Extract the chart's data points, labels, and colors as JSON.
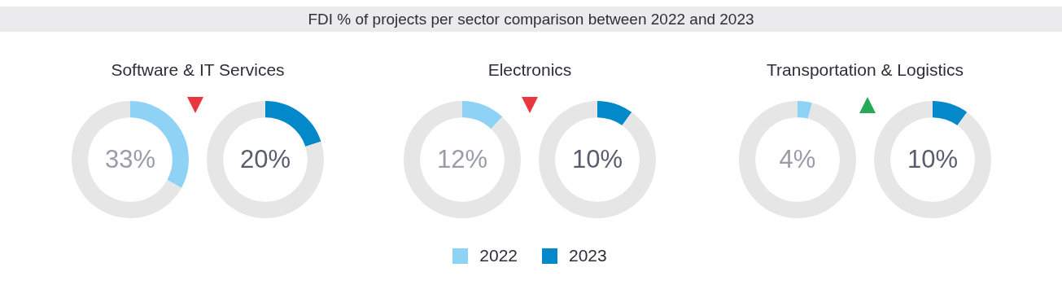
{
  "chart_data": [
    {
      "type": "other",
      "title": "FDI % of projects per sector comparison between 2022 and 2023"
    },
    {
      "type": "donut",
      "subtitle": "Software & IT Services",
      "categories": [
        null,
        null
      ],
      "series": [
        {
          "colors": [
            "#8ed3f5",
            "#e6e6e6"
          ],
          "values": [
            33,
            67
          ],
          "value_labels": [
            "33%",
            null
          ]
        },
        {
          "colors": [
            "#0388c9",
            "#e6e6e6"
          ],
          "values": [
            20,
            80
          ],
          "value_labels": [
            "20%",
            null
          ]
        }
      ]
    },
    {
      "type": "donut",
      "subtitle": "Electronics",
      "categories": [
        null,
        null
      ],
      "legend": "bottom",
      "series": [
        {
          "name": "2022",
          "colors": [
            "#8ed3f5",
            "#e6e6e6"
          ],
          "values": [
            12,
            88
          ],
          "value_labels": [
            "12%",
            null
          ]
        },
        {
          "name": "2023",
          "colors": [
            "#0388c9",
            "#e6e6e6"
          ],
          "values": [
            10,
            90
          ],
          "value_labels": [
            "10%",
            null
          ]
        }
      ]
    },
    {
      "type": "donut",
      "subtitle": "Transportation & Logistics",
      "categories": [
        null,
        null
      ],
      "series": [
        {
          "colors": [
            "#8ed3f5",
            "#e6e6e6"
          ],
          "values": [
            4,
            96
          ],
          "value_labels": [
            "4%",
            null
          ]
        },
        {
          "colors": [
            "#0388c9",
            "#e6e6e6"
          ],
          "values": [
            10,
            90
          ],
          "value_labels": [
            "10%",
            null
          ]
        }
      ]
    }
  ]
}
